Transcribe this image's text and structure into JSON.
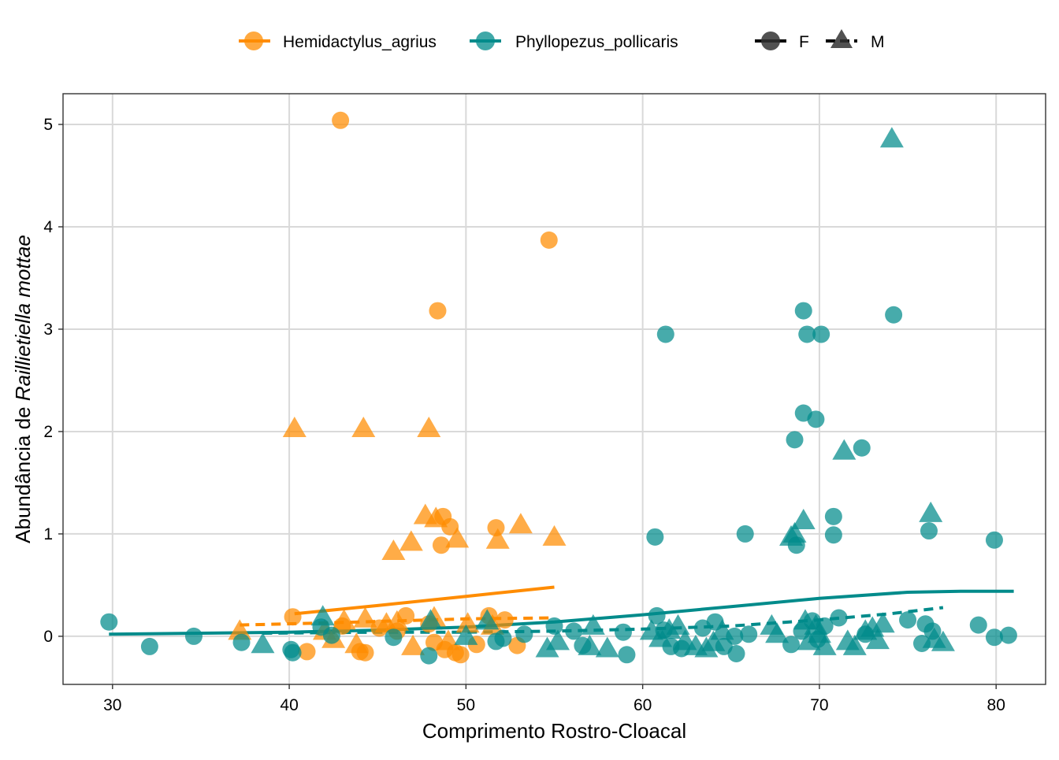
{
  "colors": {
    "hemidactylus": "#FF8C00",
    "phyllopezus": "#008B8B",
    "sex_key": "#333333",
    "grid": "#D9D9D9",
    "axis": "#333333",
    "text": "#000000"
  },
  "chart_data": {
    "type": "scatter",
    "xlabel": "Comprimento Rostro-Cloacal",
    "ylabel_prefix": "Abundância de ",
    "ylabel_italic": "Raillietiella mottae",
    "xlim": [
      27.2,
      82.8
    ],
    "ylim": [
      -0.47,
      5.3
    ],
    "x_ticks": [
      30,
      40,
      50,
      60,
      70,
      80
    ],
    "y_ticks": [
      0,
      1,
      2,
      3,
      4,
      5
    ],
    "grid": true,
    "legend_position": "top",
    "legend": {
      "species": [
        {
          "key": "hemidactylus",
          "label": "Hemidactylus_agrius"
        },
        {
          "key": "phyllopezus",
          "label": "Phyllopezus_pollicaris"
        }
      ],
      "sex": [
        {
          "key": "F",
          "label": "F",
          "shape": "circle",
          "line": "solid"
        },
        {
          "key": "M",
          "label": "M",
          "shape": "triangle",
          "line": "dashed"
        }
      ]
    },
    "series": [
      {
        "species": "hemidactylus",
        "sex": "F",
        "points": [
          [
            42.9,
            5.04
          ],
          [
            54.7,
            3.87
          ],
          [
            48.4,
            3.18
          ],
          [
            48.7,
            1.17
          ],
          [
            49.1,
            1.07
          ],
          [
            48.6,
            0.89
          ],
          [
            51.7,
            1.06
          ],
          [
            40.2,
            0.19
          ],
          [
            41.0,
            -0.15
          ],
          [
            44.0,
            -0.15
          ],
          [
            44.3,
            -0.16
          ],
          [
            46.6,
            0.2
          ],
          [
            47.9,
            0.12
          ],
          [
            48.8,
            -0.13
          ],
          [
            49.4,
            -0.16
          ],
          [
            49.7,
            -0.18
          ],
          [
            51.3,
            0.2
          ],
          [
            52.2,
            0.16
          ],
          [
            52.9,
            -0.09
          ],
          [
            45.1,
            0.08
          ],
          [
            48.2,
            -0.06
          ],
          [
            50.6,
            -0.08
          ],
          [
            46.1,
            0.05
          ],
          [
            43.0,
            0.1
          ]
        ]
      },
      {
        "species": "hemidactylus",
        "sex": "M",
        "points": [
          [
            40.3,
            2.03
          ],
          [
            44.2,
            2.03
          ],
          [
            47.9,
            2.03
          ],
          [
            47.7,
            1.18
          ],
          [
            48.3,
            1.15
          ],
          [
            49.5,
            0.95
          ],
          [
            46.9,
            0.92
          ],
          [
            45.9,
            0.83
          ],
          [
            51.8,
            0.94
          ],
          [
            53.1,
            1.09
          ],
          [
            55.0,
            0.97
          ],
          [
            37.2,
            0.05
          ],
          [
            42.0,
            0.05
          ],
          [
            43.1,
            0.15
          ],
          [
            44.3,
            0.17
          ],
          [
            46.1,
            0.14
          ],
          [
            48.2,
            0.18
          ],
          [
            50.1,
            0.12
          ],
          [
            51.5,
            0.1
          ],
          [
            47.0,
            -0.1
          ],
          [
            42.5,
            -0.03
          ],
          [
            43.8,
            -0.08
          ],
          [
            49.0,
            -0.05
          ],
          [
            45.5,
            0.12
          ]
        ]
      },
      {
        "species": "phyllopezus",
        "sex": "F",
        "points": [
          [
            29.8,
            0.14
          ],
          [
            32.1,
            -0.1
          ],
          [
            34.6,
            0.0
          ],
          [
            37.3,
            -0.06
          ],
          [
            40.1,
            -0.13
          ],
          [
            40.2,
            -0.16
          ],
          [
            41.8,
            0.09
          ],
          [
            42.4,
            0.01
          ],
          [
            45.9,
            -0.01
          ],
          [
            47.9,
            -0.19
          ],
          [
            51.7,
            -0.05
          ],
          [
            52.1,
            -0.02
          ],
          [
            53.3,
            0.02
          ],
          [
            55.0,
            0.1
          ],
          [
            56.1,
            0.05
          ],
          [
            56.6,
            -0.09
          ],
          [
            58.9,
            0.04
          ],
          [
            59.1,
            -0.18
          ],
          [
            60.7,
            0.97
          ],
          [
            61.3,
            2.95
          ],
          [
            60.8,
            0.2
          ],
          [
            61.2,
            0.06
          ],
          [
            61.6,
            -0.1
          ],
          [
            62.2,
            -0.12
          ],
          [
            63.4,
            0.08
          ],
          [
            64.1,
            0.14
          ],
          [
            64.6,
            -0.1
          ],
          [
            65.2,
            0.0
          ],
          [
            65.3,
            -0.17
          ],
          [
            65.8,
            1.0
          ],
          [
            66.0,
            0.02
          ],
          [
            68.6,
            1.92
          ],
          [
            68.7,
            0.89
          ],
          [
            69.1,
            3.18
          ],
          [
            69.1,
            2.18
          ],
          [
            69.3,
            2.95
          ],
          [
            69.8,
            2.12
          ],
          [
            70.1,
            2.95
          ],
          [
            69.0,
            0.05
          ],
          [
            69.6,
            0.15
          ],
          [
            69.9,
            -0.03
          ],
          [
            70.3,
            0.1
          ],
          [
            70.8,
            1.17
          ],
          [
            70.8,
            0.99
          ],
          [
            71.1,
            0.18
          ],
          [
            72.4,
            1.84
          ],
          [
            72.6,
            0.02
          ],
          [
            74.2,
            3.14
          ],
          [
            75.0,
            0.16
          ],
          [
            75.8,
            -0.07
          ],
          [
            76.0,
            0.12
          ],
          [
            76.2,
            1.03
          ],
          [
            76.4,
            0.05
          ],
          [
            79.0,
            0.11
          ],
          [
            79.9,
            0.94
          ],
          [
            79.9,
            -0.01
          ],
          [
            80.7,
            0.01
          ],
          [
            68.4,
            -0.08
          ]
        ]
      },
      {
        "species": "phyllopezus",
        "sex": "M",
        "points": [
          [
            38.5,
            -0.08
          ],
          [
            41.9,
            0.19
          ],
          [
            48.0,
            0.15
          ],
          [
            50.0,
            0.0
          ],
          [
            51.2,
            0.15
          ],
          [
            54.6,
            -0.12
          ],
          [
            55.2,
            -0.05
          ],
          [
            57.2,
            0.1
          ],
          [
            57.0,
            -0.1
          ],
          [
            58.0,
            -0.12
          ],
          [
            60.5,
            0.05
          ],
          [
            61.0,
            -0.02
          ],
          [
            61.5,
            0.06
          ],
          [
            62.0,
            0.1
          ],
          [
            62.4,
            -0.05
          ],
          [
            63.0,
            -0.1
          ],
          [
            63.6,
            -0.12
          ],
          [
            64.0,
            -0.06
          ],
          [
            64.5,
            0.05
          ],
          [
            67.3,
            0.1
          ],
          [
            67.6,
            0.02
          ],
          [
            68.4,
            0.97
          ],
          [
            68.6,
            1.0
          ],
          [
            69.1,
            1.13
          ],
          [
            69.2,
            0.15
          ],
          [
            69.4,
            -0.05
          ],
          [
            69.8,
            0.1
          ],
          [
            70.0,
            0.02
          ],
          [
            70.3,
            -0.1
          ],
          [
            71.4,
            1.81
          ],
          [
            71.6,
            -0.05
          ],
          [
            72.0,
            -0.1
          ],
          [
            72.6,
            0.05
          ],
          [
            73.0,
            0.08
          ],
          [
            73.3,
            -0.04
          ],
          [
            73.6,
            0.12
          ],
          [
            74.1,
            4.86
          ],
          [
            76.3,
            1.2
          ],
          [
            76.5,
            -0.03
          ],
          [
            77.0,
            -0.06
          ]
        ]
      }
    ],
    "trend_lines": [
      {
        "species": "hemidactylus",
        "sex": "F",
        "line": "solid",
        "points": [
          [
            40.3,
            0.22
          ],
          [
            45.0,
            0.3
          ],
          [
            50.0,
            0.39
          ],
          [
            55.0,
            0.48
          ]
        ]
      },
      {
        "species": "hemidactylus",
        "sex": "M",
        "line": "dashed",
        "points": [
          [
            37.2,
            0.11
          ],
          [
            42.0,
            0.13
          ],
          [
            46.0,
            0.15
          ],
          [
            50.0,
            0.17
          ],
          [
            55.0,
            0.18
          ]
        ]
      },
      {
        "species": "phyllopezus",
        "sex": "F",
        "line": "solid",
        "points": [
          [
            29.8,
            0.02
          ],
          [
            35.0,
            0.03
          ],
          [
            40.0,
            0.04
          ],
          [
            45.0,
            0.06
          ],
          [
            50.0,
            0.09
          ],
          [
            55.0,
            0.14
          ],
          [
            60.0,
            0.21
          ],
          [
            65.0,
            0.29
          ],
          [
            70.0,
            0.37
          ],
          [
            75.0,
            0.43
          ],
          [
            78.0,
            0.44
          ],
          [
            81.0,
            0.44
          ]
        ]
      },
      {
        "species": "phyllopezus",
        "sex": "M",
        "line": "dashed",
        "points": [
          [
            38.5,
            0.03
          ],
          [
            45.0,
            0.04
          ],
          [
            50.0,
            0.04
          ],
          [
            55.0,
            0.05
          ],
          [
            60.0,
            0.07
          ],
          [
            65.0,
            0.1
          ],
          [
            70.0,
            0.16
          ],
          [
            74.0,
            0.22
          ],
          [
            77.0,
            0.28
          ]
        ]
      }
    ]
  }
}
